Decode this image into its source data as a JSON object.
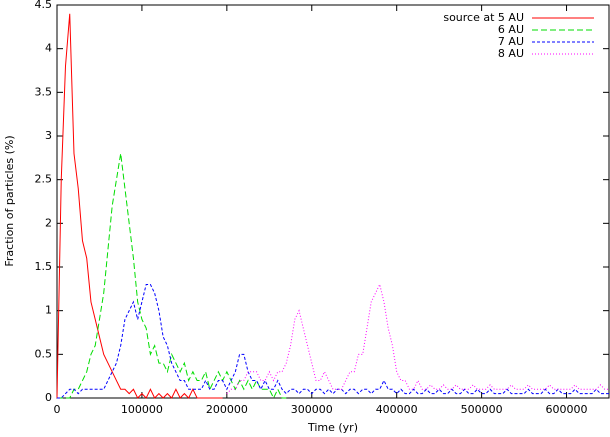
{
  "chart_data": {
    "type": "line",
    "xlabel": "Time (yr)",
    "ylabel": "Fraction of particles (%)",
    "xlim": [
      0,
      650000
    ],
    "ylim": [
      0,
      4.5
    ],
    "xticks": [
      0,
      100000,
      200000,
      300000,
      400000,
      500000,
      600000
    ],
    "yticks": [
      0,
      0.5,
      1,
      1.5,
      2,
      2.5,
      3,
      3.5,
      4,
      4.5
    ],
    "legend": "top-right",
    "x": [
      0,
      5000,
      10000,
      15000,
      20000,
      25000,
      30000,
      35000,
      40000,
      45000,
      50000,
      55000,
      60000,
      65000,
      70000,
      75000,
      80000,
      85000,
      90000,
      95000,
      100000,
      105000,
      110000,
      115000,
      120000,
      125000,
      130000,
      135000,
      140000,
      145000,
      150000,
      155000,
      160000,
      165000,
      170000,
      175000,
      180000,
      185000,
      190000,
      195000,
      200000,
      205000,
      210000,
      215000,
      220000,
      225000,
      230000,
      235000,
      240000,
      245000,
      250000,
      255000,
      260000,
      265000,
      270000,
      275000,
      280000,
      285000,
      290000,
      295000,
      300000,
      305000,
      310000,
      315000,
      320000,
      325000,
      330000,
      335000,
      340000,
      345000,
      350000,
      355000,
      360000,
      365000,
      370000,
      375000,
      380000,
      385000,
      390000,
      395000,
      400000,
      405000,
      410000,
      415000,
      420000,
      425000,
      430000,
      435000,
      440000,
      445000,
      450000,
      455000,
      460000,
      465000,
      470000,
      475000,
      480000,
      485000,
      490000,
      495000,
      500000,
      505000,
      510000,
      515000,
      520000,
      525000,
      530000,
      535000,
      540000,
      545000,
      550000,
      555000,
      560000,
      565000,
      570000,
      575000,
      580000,
      585000,
      590000,
      595000,
      600000,
      605000,
      610000,
      615000,
      620000,
      625000,
      630000,
      635000,
      640000,
      645000,
      650000
    ],
    "series": [
      {
        "name": "source at 5 AU",
        "color": "#ff0000",
        "dash": "none",
        "values": [
          0,
          2.5,
          3.8,
          4.4,
          2.8,
          2.4,
          1.8,
          1.6,
          1.1,
          0.9,
          0.7,
          0.5,
          0.4,
          0.3,
          0.2,
          0.1,
          0.1,
          0.05,
          0.1,
          0,
          0.05,
          0,
          0.1,
          0,
          0.05,
          0,
          0.05,
          0,
          0.1,
          0,
          0.05,
          0,
          0.1,
          0,
          0,
          0,
          0,
          0,
          0,
          0,
          null,
          null,
          null,
          null,
          null,
          null,
          null,
          null,
          null,
          null,
          null,
          null,
          null,
          null,
          null,
          null,
          null,
          null,
          null,
          null,
          null,
          null,
          null,
          null,
          null,
          null,
          null,
          null,
          null,
          null,
          null,
          null,
          null,
          null,
          null,
          null,
          null,
          null,
          null,
          null,
          null,
          null,
          null,
          null,
          null,
          null,
          null,
          null,
          null,
          null,
          null,
          null,
          null,
          null,
          null,
          null,
          null,
          null,
          null,
          null,
          null,
          null,
          null,
          null,
          null,
          null,
          null,
          null,
          null,
          null,
          null,
          null,
          null,
          null,
          null,
          null,
          null,
          null,
          null,
          null,
          null,
          null,
          null,
          null,
          null,
          null,
          null,
          null,
          null,
          null,
          null
        ]
      },
      {
        "name": "6 AU",
        "color": "#00dd00",
        "dash": "6,3",
        "values": [
          0,
          0,
          0,
          0,
          0.1,
          0.1,
          0.2,
          0.3,
          0.5,
          0.6,
          0.9,
          1.2,
          1.7,
          2.2,
          2.5,
          2.8,
          2.4,
          2.0,
          1.6,
          1.1,
          0.9,
          0.8,
          0.5,
          0.6,
          0.4,
          0.4,
          0.3,
          0.5,
          0.4,
          0.3,
          0.4,
          0.2,
          0.3,
          0.2,
          0.2,
          0.3,
          0.1,
          0.2,
          0.3,
          0.2,
          0.3,
          0.2,
          0.1,
          0.2,
          0.1,
          0.2,
          0.1,
          0.2,
          0.1,
          0.1,
          0.1,
          0,
          0.1,
          0,
          0,
          null,
          null,
          null,
          null,
          null,
          null,
          null,
          null,
          null,
          null,
          null,
          null,
          null,
          null,
          null,
          null,
          null,
          null,
          null,
          null,
          null,
          null,
          null,
          null,
          null,
          null,
          null,
          null,
          null,
          null,
          null,
          null,
          null,
          null,
          null,
          null,
          null,
          null,
          null,
          null,
          null,
          null,
          null,
          null,
          null,
          null,
          null,
          null,
          null,
          null,
          null,
          null,
          null,
          null,
          null,
          null,
          null,
          null,
          null,
          null,
          null,
          null,
          null,
          null,
          null,
          null,
          null,
          null,
          null,
          null,
          null,
          null,
          null,
          null,
          null,
          null
        ]
      },
      {
        "name": "7 AU",
        "color": "#0000ff",
        "dash": "3,2",
        "values": [
          0,
          0,
          0.05,
          0.1,
          0.1,
          0.05,
          0.1,
          0.1,
          0.1,
          0.1,
          0.1,
          0.1,
          0.2,
          0.3,
          0.4,
          0.6,
          0.9,
          1.0,
          1.1,
          0.9,
          1.1,
          1.3,
          1.3,
          1.2,
          1.0,
          0.7,
          0.6,
          0.4,
          0.3,
          0.2,
          0.2,
          0.1,
          0.1,
          0.1,
          0.1,
          0.2,
          0.1,
          0.1,
          0.2,
          0.2,
          0.1,
          0.2,
          0.3,
          0.5,
          0.5,
          0.3,
          0.2,
          0.2,
          0.1,
          0.2,
          0.1,
          0.1,
          0.2,
          0.1,
          0.05,
          0.1,
          0.1,
          0.05,
          0.1,
          0.1,
          0.05,
          0.1,
          0.1,
          0.05,
          0.1,
          0.05,
          0.1,
          0.1,
          0.05,
          0.1,
          0.1,
          0.05,
          0.1,
          0.1,
          0.05,
          0.1,
          0.1,
          0.2,
          0.1,
          0.1,
          0.05,
          0.1,
          0.05,
          0.05,
          0.1,
          0.05,
          0.05,
          0.1,
          0.05,
          0.05,
          0.1,
          0.05,
          0.05,
          0.1,
          0.05,
          0.05,
          0.1,
          0.05,
          0.05,
          0.1,
          0.05,
          0.05,
          0.1,
          0.05,
          0.05,
          0.05,
          0.1,
          0.05,
          0.05,
          0.05,
          0.05,
          0.1,
          0.05,
          0.05,
          0.05,
          0.1,
          0.05,
          0.05,
          0.1,
          0.05,
          0.05,
          0.05,
          0.1,
          0.05,
          0.05,
          0.05,
          0.05,
          0.1,
          0.05,
          0.05,
          0.05
        ]
      },
      {
        "name": "8 AU",
        "color": "#ff00ff",
        "dash": "1,2",
        "values": [
          null,
          null,
          null,
          null,
          null,
          null,
          null,
          null,
          null,
          null,
          null,
          null,
          null,
          null,
          null,
          null,
          null,
          null,
          null,
          null,
          null,
          null,
          null,
          null,
          null,
          null,
          null,
          null,
          null,
          null,
          null,
          null,
          null,
          null,
          null,
          null,
          null,
          null,
          null,
          null,
          0.05,
          0.1,
          0.1,
          0.2,
          0.2,
          0.3,
          0.3,
          0.3,
          0.2,
          0.2,
          0.3,
          0.2,
          0.3,
          0.3,
          0.4,
          0.6,
          0.9,
          1.0,
          0.8,
          0.6,
          0.4,
          0.2,
          0.2,
          0.3,
          0.2,
          0.1,
          0.1,
          0.1,
          0.2,
          0.3,
          0.3,
          0.5,
          0.5,
          0.8,
          1.1,
          1.2,
          1.3,
          1.1,
          0.8,
          0.6,
          0.3,
          0.2,
          0.2,
          0.1,
          0.1,
          0.2,
          0.1,
          0.1,
          0.15,
          0.1,
          0.1,
          0.15,
          0.1,
          0.1,
          0.15,
          0.1,
          0.1,
          0.1,
          0.15,
          0.1,
          0.1,
          0.1,
          0.15,
          0.1,
          0.1,
          0.1,
          0.1,
          0.15,
          0.1,
          0.1,
          0.1,
          0.15,
          0.1,
          0.1,
          0.1,
          0.1,
          0.15,
          0.1,
          0.1,
          0.1,
          0.1,
          0.1,
          0.15,
          0.1,
          0.1,
          0.1,
          0.1,
          0.1,
          0.15,
          0.1,
          0.1
        ]
      }
    ]
  }
}
